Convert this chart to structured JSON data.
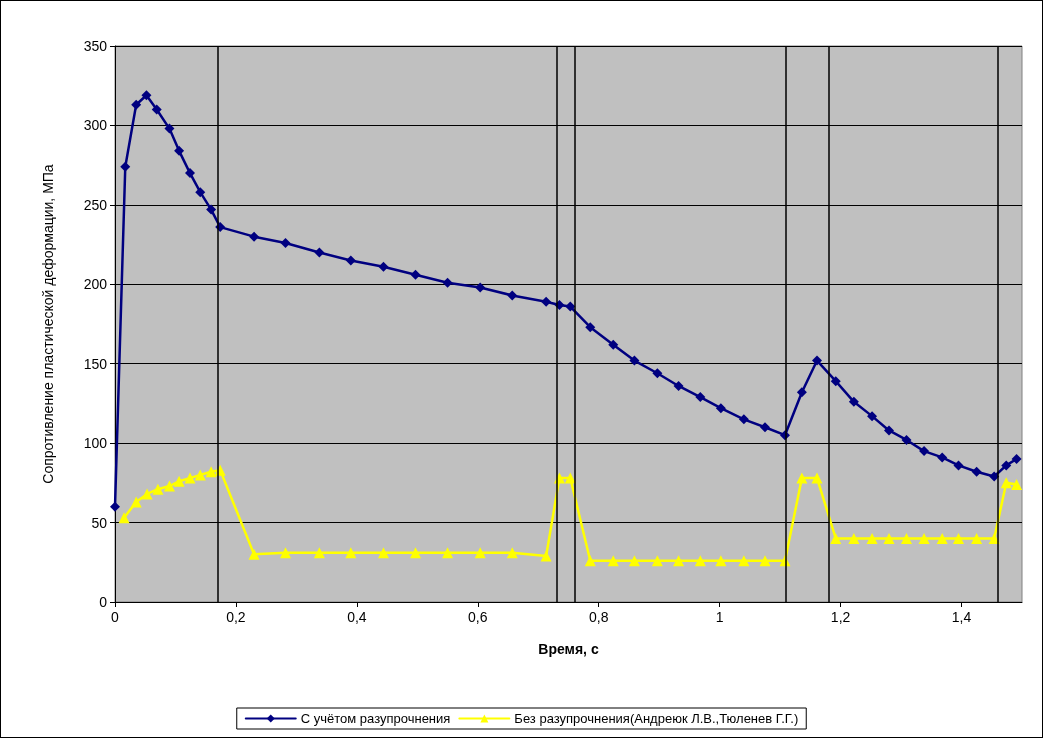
{
  "chart_data": {
    "type": "line",
    "xlabel": "Время, с",
    "ylabel": "Сопротивление пластической деформации, МПа",
    "xlim": [
      0,
      1.5
    ],
    "ylim": [
      0,
      350
    ],
    "xticks": [
      0,
      {
        "value": 0.2,
        "label": "0,2"
      },
      {
        "value": 0.4,
        "label": "0,4"
      },
      {
        "value": 0.6,
        "label": "0,6"
      },
      {
        "value": 0.8,
        "label": "0,8"
      },
      1,
      {
        "value": 1.2,
        "label": "1,2"
      },
      {
        "value": 1.4,
        "label": "1,4"
      }
    ],
    "yticks": [
      0,
      50,
      100,
      150,
      200,
      250,
      300,
      350
    ],
    "grid": "y",
    "legend": "bottom",
    "ref_lines": [
      {
        "axis": "x",
        "value": 0.175,
        "color": "#000000"
      },
      {
        "axis": "x",
        "value": 0.727,
        "color": "#000000"
      },
      {
        "axis": "x",
        "value": 0.755,
        "color": "#000000"
      },
      {
        "axis": "x",
        "value": 1.115,
        "color": "#000000"
      },
      {
        "axis": "x",
        "value": 1.18,
        "color": "#000000"
      },
      {
        "axis": "x",
        "value": 1.46,
        "color": "#000000"
      }
    ],
    "series": [
      {
        "name": "С учётом разупрочнения",
        "color": "#000080",
        "marker": "diamond",
        "x": [
          0,
          0.017,
          0.035,
          0.052,
          0.069,
          0.09,
          0.106,
          0.124,
          0.141,
          0.159,
          0.174,
          0.23,
          0.282,
          0.338,
          0.39,
          0.444,
          0.497,
          0.55,
          0.604,
          0.657,
          0.713,
          0.735,
          0.753,
          0.786,
          0.824,
          0.859,
          0.897,
          0.932,
          0.968,
          1.002,
          1.04,
          1.075,
          1.108,
          1.136,
          1.161,
          1.192,
          1.222,
          1.252,
          1.28,
          1.309,
          1.338,
          1.368,
          1.395,
          1.425,
          1.454,
          1.474,
          1.491
        ],
        "values": [
          60,
          274,
          313,
          319,
          310,
          298,
          284,
          270,
          258,
          247,
          236,
          230,
          226,
          220,
          215,
          211,
          206,
          201,
          198,
          193,
          189,
          187,
          186,
          173,
          162,
          152,
          144,
          136,
          129,
          122,
          115,
          110,
          105,
          132,
          152,
          139,
          126,
          117,
          108,
          102,
          95,
          91,
          86,
          82,
          79,
          86,
          90
        ]
      },
      {
        "name": "Без разупрочнения(Андреюк Л.В.,Тюленев Г.Г.)",
        "color": "#ffff00",
        "marker": "triangle",
        "x": [
          0.015,
          0.035,
          0.053,
          0.071,
          0.09,
          0.106,
          0.124,
          0.141,
          0.159,
          0.174,
          0.23,
          0.282,
          0.338,
          0.39,
          0.444,
          0.497,
          0.55,
          0.604,
          0.657,
          0.713,
          0.735,
          0.753,
          0.786,
          0.824,
          0.859,
          0.897,
          0.932,
          0.968,
          1.002,
          1.04,
          1.075,
          1.108,
          1.136,
          1.161,
          1.192,
          1.222,
          1.252,
          1.28,
          1.309,
          1.338,
          1.368,
          1.395,
          1.425,
          1.454,
          1.474,
          1.491
        ],
        "values": [
          53,
          63,
          68,
          71,
          73,
          76,
          78,
          80,
          82,
          83,
          30,
          31,
          31,
          31,
          31,
          31,
          31,
          31,
          31,
          29,
          78,
          78,
          26,
          26,
          26,
          26,
          26,
          26,
          26,
          26,
          26,
          26,
          78,
          78,
          40,
          40,
          40,
          40,
          40,
          40,
          40,
          40,
          40,
          40,
          75,
          74
        ]
      }
    ]
  }
}
